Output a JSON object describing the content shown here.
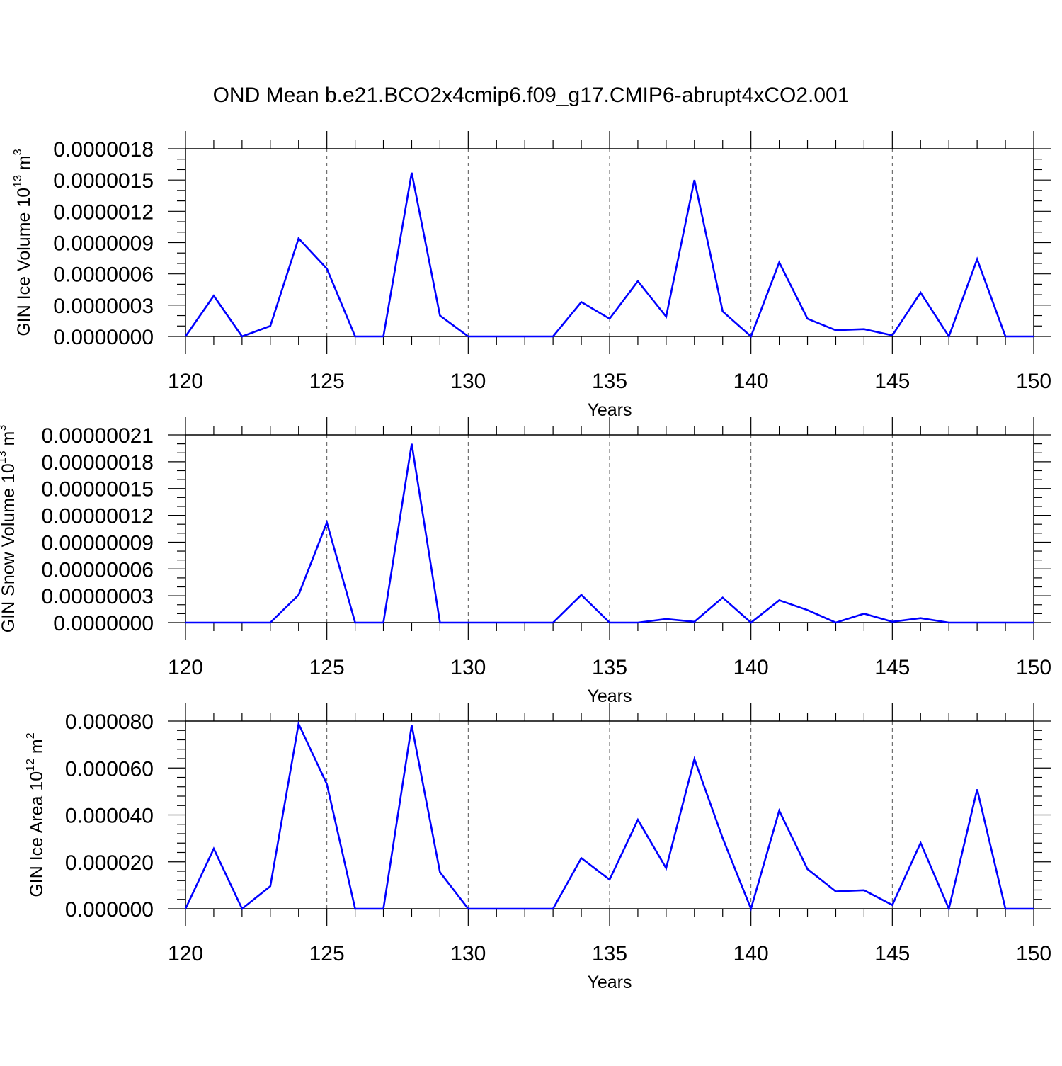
{
  "figure": {
    "title": "OND Mean b.e21.BCO2x4cmip6.f09_g17.CMIP6-abrupt4xCO2.001"
  },
  "colors": {
    "line": "#0000ff",
    "axis": "#000000",
    "grid": "#555555"
  },
  "chart_data": [
    {
      "type": "line",
      "title": "",
      "xlabel": "Years",
      "ylabel_main": "GIN Ice Volume 10",
      "ylabel_exp": "13",
      "ylabel_unit": " m",
      "ylabel_unit_exp": "3",
      "xlim": [
        120,
        150
      ],
      "ylim": [
        0,
        1.8e-06
      ],
      "x_ticks": [
        120,
        125,
        130,
        135,
        140,
        145,
        150
      ],
      "y_ticks": [
        0,
        3e-07,
        6e-07,
        9e-07,
        1.2e-06,
        1.5e-06,
        1.8e-06
      ],
      "y_tick_labels": [
        "0.0000000",
        "0.0000003",
        "0.0000006",
        "0.0000009",
        "0.0000012",
        "0.0000015",
        "0.0000018"
      ],
      "y_minor_step": 1e-07,
      "grid": "dashed vertical at major x ticks",
      "x": [
        120,
        121,
        122,
        123,
        124,
        125,
        126,
        127,
        128,
        129,
        130,
        131,
        132,
        133,
        134,
        135,
        136,
        137,
        138,
        139,
        140,
        141,
        142,
        143,
        144,
        145,
        146,
        147,
        148,
        149,
        150
      ],
      "values": [
        0,
        3.9e-07,
        0,
        1e-07,
        9.4e-07,
        6.5e-07,
        0,
        0,
        1.57e-06,
        2e-07,
        0,
        0,
        0,
        0,
        3.3e-07,
        1.7e-07,
        5.3e-07,
        1.9e-07,
        1.5e-06,
        2.4e-07,
        0,
        7.1e-07,
        1.7e-07,
        6e-08,
        7e-08,
        1e-08,
        4.2e-07,
        0,
        7.4e-07,
        0,
        0
      ]
    },
    {
      "type": "line",
      "title": "",
      "xlabel": "Years",
      "ylabel_main": "GIN Snow Volume 10",
      "ylabel_exp": "13",
      "ylabel_unit": " m",
      "ylabel_unit_exp": "3",
      "xlim": [
        120,
        150
      ],
      "ylim": [
        0,
        2.1e-07
      ],
      "x_ticks": [
        120,
        125,
        130,
        135,
        140,
        145,
        150
      ],
      "y_ticks": [
        0,
        3e-08,
        6e-08,
        9e-08,
        1.2e-07,
        1.5e-07,
        1.8e-07,
        2.1e-07
      ],
      "y_tick_labels": [
        "0.0000000",
        "0.00000003",
        "0.00000006",
        "0.00000009",
        "0.00000012",
        "0.00000015",
        "0.00000018",
        "0.00000021"
      ],
      "y_minor_step": 1e-08,
      "grid": "dashed vertical at major x ticks",
      "x": [
        120,
        121,
        122,
        123,
        124,
        125,
        126,
        127,
        128,
        129,
        130,
        131,
        132,
        133,
        134,
        135,
        136,
        137,
        138,
        139,
        140,
        141,
        142,
        143,
        144,
        145,
        146,
        147,
        148,
        149,
        150
      ],
      "values": [
        0,
        0,
        0,
        0,
        3.1e-08,
        1.12e-07,
        0,
        0,
        2e-07,
        0,
        0,
        0,
        0,
        0,
        3.1e-08,
        0,
        0,
        4e-09,
        1e-09,
        2.8e-08,
        0,
        2.5e-08,
        1.4e-08,
        0,
        1e-08,
        1e-09,
        5e-09,
        0,
        0,
        0,
        0
      ]
    },
    {
      "type": "line",
      "title": "",
      "xlabel": "Years",
      "ylabel_main": "GIN Ice Area 10",
      "ylabel_exp": "12",
      "ylabel_unit": " m",
      "ylabel_unit_exp": "2",
      "xlim": [
        120,
        150
      ],
      "ylim": [
        0,
        8e-05
      ],
      "x_ticks": [
        120,
        125,
        130,
        135,
        140,
        145,
        150
      ],
      "y_ticks": [
        0,
        2e-05,
        4e-05,
        6e-05,
        8e-05
      ],
      "y_tick_labels": [
        "0.000000",
        "0.000020",
        "0.000040",
        "0.000060",
        "0.000080"
      ],
      "y_minor_step": 4e-06,
      "grid": "dashed vertical at major x ticks",
      "x": [
        120,
        121,
        122,
        123,
        124,
        125,
        126,
        127,
        128,
        129,
        130,
        131,
        132,
        133,
        134,
        135,
        136,
        137,
        138,
        139,
        140,
        141,
        142,
        143,
        144,
        145,
        146,
        147,
        148,
        149,
        150
      ],
      "values": [
        0,
        2.56e-05,
        0,
        9.6e-06,
        7.88e-05,
        5.31e-05,
        0,
        0,
        7.82e-05,
        1.56e-05,
        0,
        0,
        0,
        0,
        2.16e-05,
        1.24e-05,
        3.79e-05,
        1.73e-05,
        6.38e-05,
        3.01e-05,
        0,
        4.18e-05,
        1.69e-05,
        7.4e-06,
        7.9e-06,
        1.6e-06,
        2.81e-05,
        0,
        5.09e-05,
        0,
        0
      ]
    }
  ]
}
